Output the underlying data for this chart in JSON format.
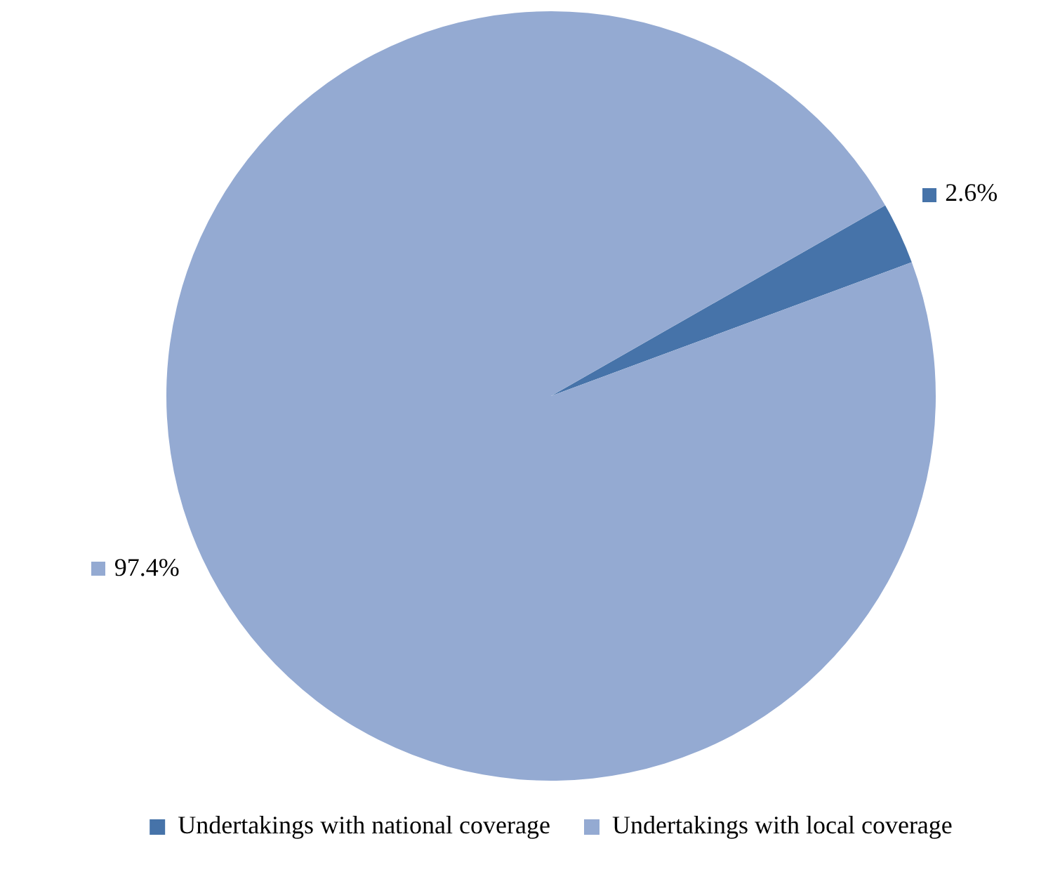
{
  "chart_data": {
    "type": "pie",
    "categories": [
      "Undertakings with national coverage",
      "Undertakings with local coverage"
    ],
    "values": [
      2.6,
      97.4
    ],
    "value_labels": [
      "2.6%",
      "97.4%"
    ],
    "colors": [
      "#4673a9",
      "#94aad2"
    ],
    "legend": "bottom"
  }
}
